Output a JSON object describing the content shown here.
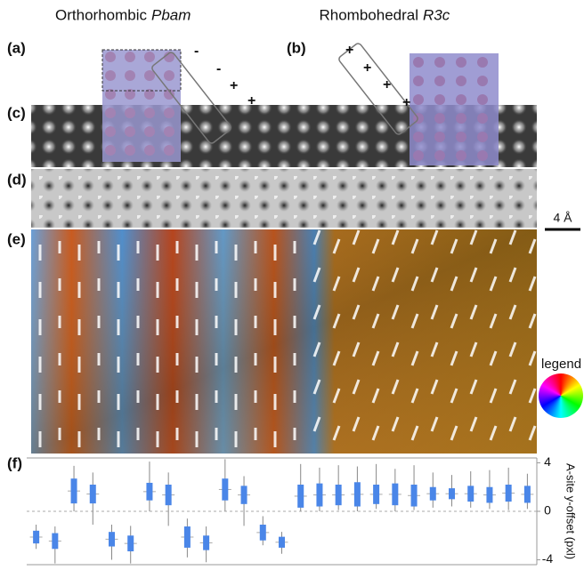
{
  "panel_labels": [
    "(a)",
    "(b)",
    "(c)",
    "(d)",
    "(e)",
    "(f)"
  ],
  "titles": {
    "left": "Orthorhombic",
    "left_group": "Pbam",
    "right": "Rhombohedral",
    "right_group": "R3c"
  },
  "signs_a": [
    "-",
    "-",
    "+",
    "+"
  ],
  "signs_b": [
    "+",
    "+",
    "+",
    "+"
  ],
  "scale_bar": "4 Å",
  "legend": "legend",
  "chart_data": {
    "type": "box",
    "ylabel": "A-site y-offset (pxl)",
    "ylim": [
      -4.4,
      4.4
    ],
    "yticks": [
      -4,
      0,
      4
    ],
    "series": [
      {
        "color": "#4a86e8",
        "boxes": [
          {
            "min": -3.1,
            "q1": -2.65,
            "q3": -1.6,
            "max": -1.1
          },
          {
            "min": -4.3,
            "q1": -3.1,
            "q3": -1.8,
            "max": -1.25
          },
          {
            "min": 0,
            "q1": 0.65,
            "q3": 2.7,
            "max": 3.75
          },
          {
            "min": -1.1,
            "q1": 0.65,
            "q3": 2.2,
            "max": 3.2
          },
          {
            "min": -4.0,
            "q1": -2.9,
            "q3": -1.7,
            "max": -1.1
          },
          {
            "min": -4.3,
            "q1": -3.3,
            "q3": -2.0,
            "max": -1.2
          },
          {
            "min": 0,
            "q1": 0.9,
            "q3": 2.35,
            "max": 4.1
          },
          {
            "min": -1.2,
            "q1": 0.5,
            "q3": 2.2,
            "max": 3.2
          },
          {
            "min": -3.8,
            "q1": -3.0,
            "q3": -1.25,
            "max": -0.6
          },
          {
            "min": -4.2,
            "q1": -3.2,
            "q3": -2.0,
            "max": -1.25
          },
          {
            "min": 0,
            "q1": 0.9,
            "q3": 2.7,
            "max": 4.3
          },
          {
            "min": -1.2,
            "q1": 0.6,
            "q3": 2.1,
            "max": 2.9
          },
          {
            "min": -2.8,
            "q1": -2.4,
            "q3": -1.1,
            "max": -0.4
          },
          {
            "min": -3.5,
            "q1": -3.0,
            "q3": -2.1,
            "max": -1.7
          },
          {
            "min": 0,
            "q1": 0.3,
            "q3": 2.2,
            "max": 3.9
          },
          {
            "min": 0,
            "q1": 0.4,
            "q3": 2.3,
            "max": 3.6
          },
          {
            "min": 0.1,
            "q1": 0.5,
            "q3": 2.2,
            "max": 3.8
          },
          {
            "min": 0,
            "q1": 0.4,
            "q3": 2.4,
            "max": 3.7
          },
          {
            "min": 0.2,
            "q1": 0.6,
            "q3": 2.2,
            "max": 3.9
          },
          {
            "min": 0,
            "q1": 0.5,
            "q3": 2.3,
            "max": 3.5
          },
          {
            "min": 0.1,
            "q1": 0.4,
            "q3": 2.2,
            "max": 3.8
          },
          {
            "min": 0.3,
            "q1": 0.9,
            "q3": 2.0,
            "max": 3.2
          },
          {
            "min": 0.4,
            "q1": 1.0,
            "q3": 1.9,
            "max": 3.0
          },
          {
            "min": 0.3,
            "q1": 0.8,
            "q3": 2.1,
            "max": 3.3
          },
          {
            "min": 0.2,
            "q1": 0.7,
            "q3": 2.0,
            "max": 3.4
          },
          {
            "min": 0.1,
            "q1": 0.8,
            "q3": 2.2,
            "max": 3.6
          },
          {
            "min": 0.2,
            "q1": 0.7,
            "q3": 2.1,
            "max": 3.1
          }
        ]
      }
    ]
  }
}
